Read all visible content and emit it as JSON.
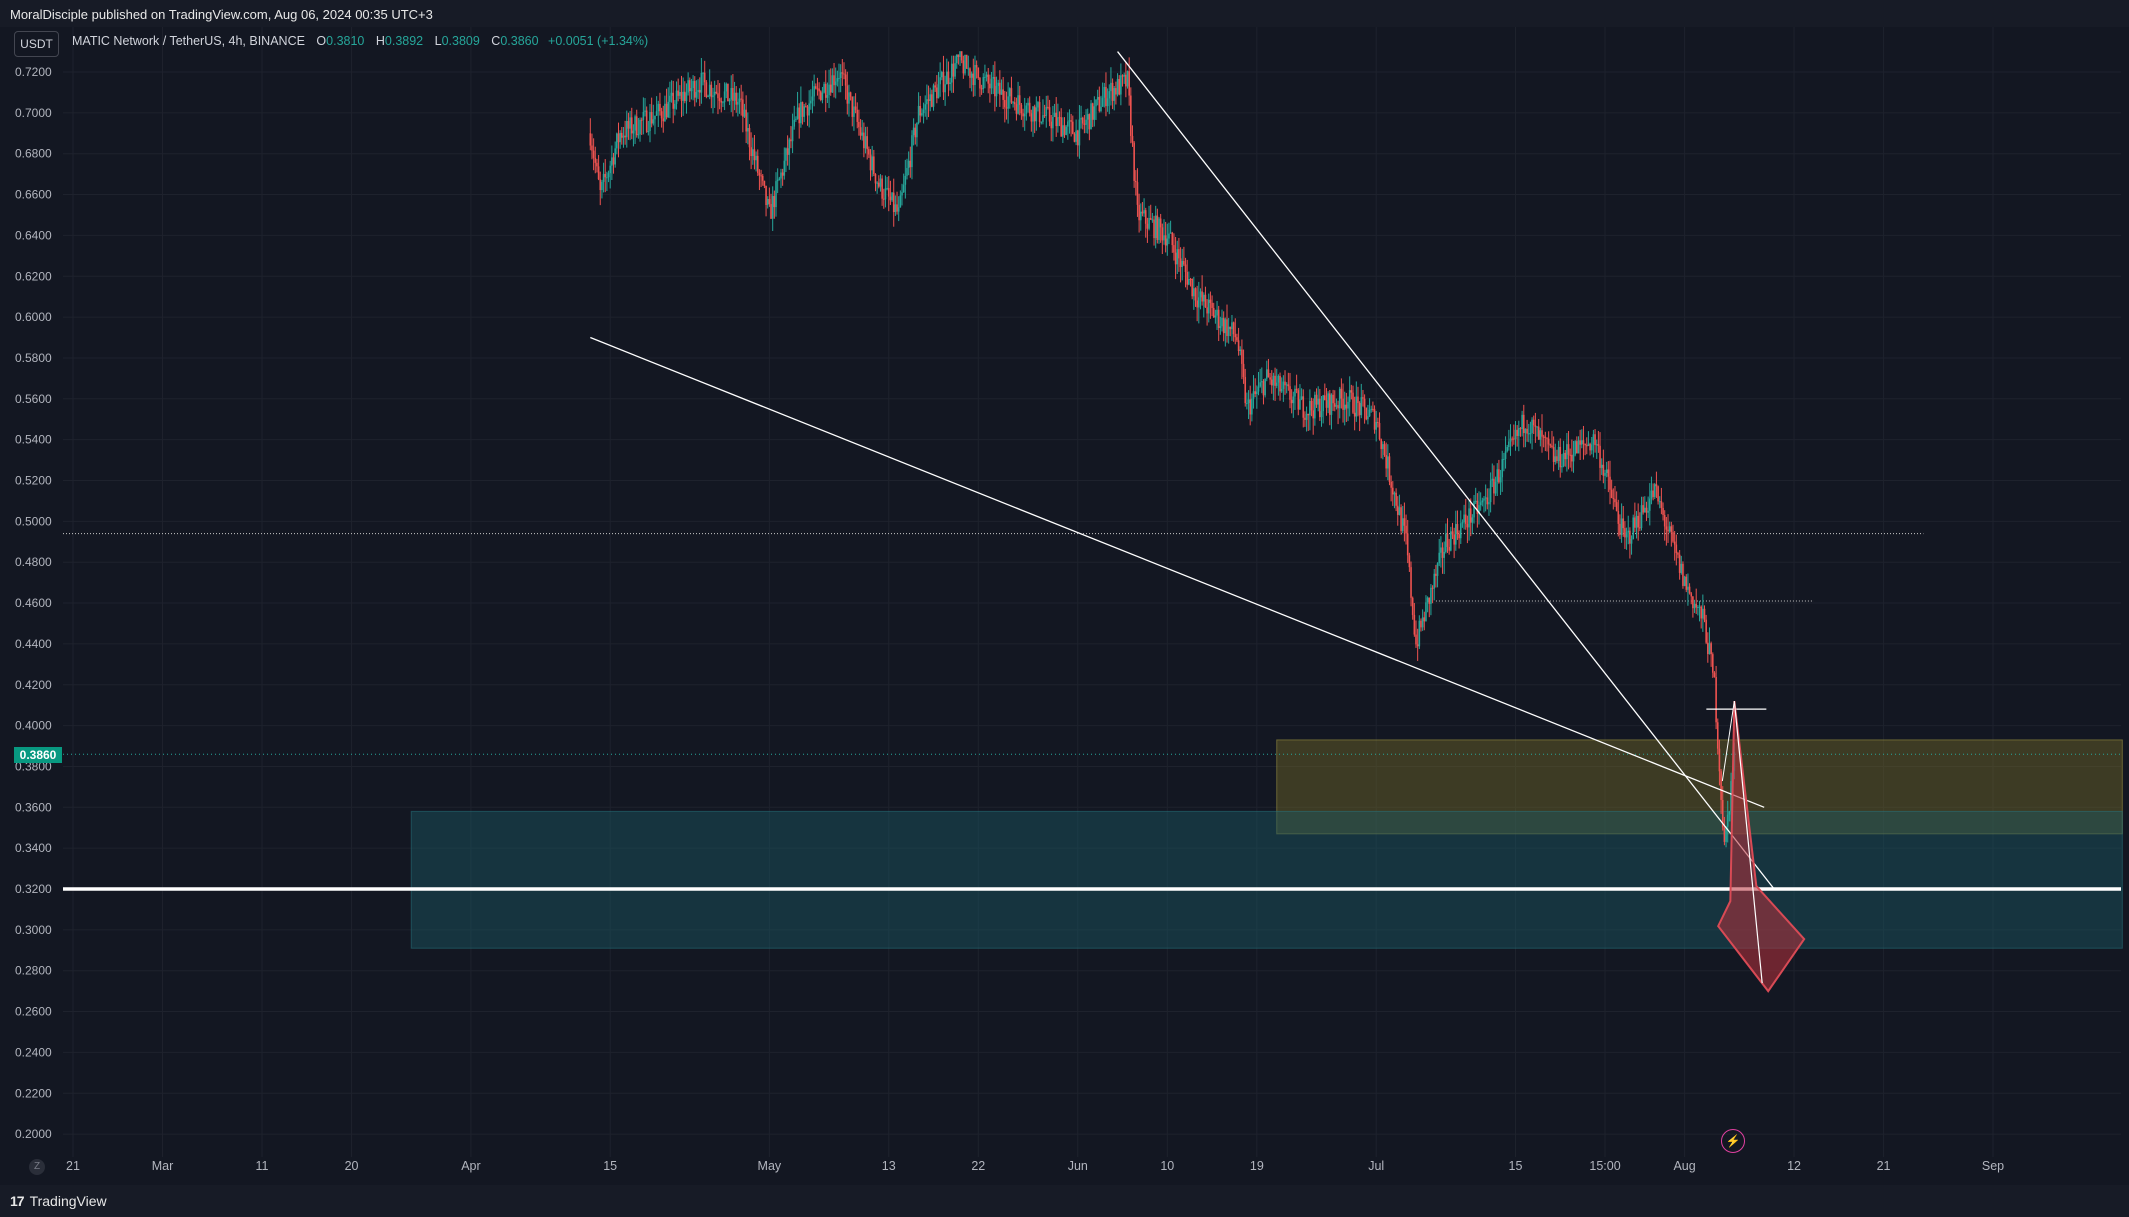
{
  "header": {
    "published": "MoralDisciple published on TradingView.com, Aug 06, 2024 00:35 UTC+3"
  },
  "legend": {
    "symbol_button": "USDT",
    "title": "MATIC Network / TetherUS, 4h, BINANCE",
    "o_label": "O",
    "o_value": "0.3810",
    "h_label": "H",
    "h_value": "0.3892",
    "l_label": "L",
    "l_value": "0.3809",
    "c_label": "C",
    "c_value": "0.3860",
    "change": "+0.0051 (+1.34%)"
  },
  "price_badge": "0.3860",
  "footer": {
    "brand": "TradingView",
    "logo_mark": "17",
    "z_button": "Z"
  },
  "colors": {
    "background": "#131722",
    "up": "#26a69a",
    "down": "#ef5350",
    "zone_olive": "#4a4a2a",
    "zone_teal": "#173d47",
    "arrow": "#b8323c",
    "line": "#ffffff"
  },
  "chart_data": {
    "type": "candlestick",
    "ylim": [
      0.19,
      0.73
    ],
    "y_ticks": [
      "0.7200",
      "0.7000",
      "0.6800",
      "0.6600",
      "0.6400",
      "0.6200",
      "0.6000",
      "0.5800",
      "0.5600",
      "0.5400",
      "0.5200",
      "0.5000",
      "0.4800",
      "0.4600",
      "0.4400",
      "0.4200",
      "0.4000",
      "0.3860",
      "0.3800",
      "0.3600",
      "0.3400",
      "0.3200",
      "0.3000",
      "0.2800",
      "0.2600",
      "0.2400",
      "0.2200",
      "0.2000"
    ],
    "x_ticks": [
      {
        "label": "21",
        "date": "2024-02-21"
      },
      {
        "label": "Mar",
        "date": "2024-03-01"
      },
      {
        "label": "11",
        "date": "2024-03-11"
      },
      {
        "label": "20",
        "date": "2024-03-20"
      },
      {
        "label": "Apr",
        "date": "2024-04-01"
      },
      {
        "label": "15",
        "date": "2024-04-15"
      },
      {
        "label": "May",
        "date": "2024-05-01"
      },
      {
        "label": "13",
        "date": "2024-05-13"
      },
      {
        "label": "22",
        "date": "2024-05-22"
      },
      {
        "label": "Jun",
        "date": "2024-06-01"
      },
      {
        "label": "10",
        "date": "2024-06-10"
      },
      {
        "label": "19",
        "date": "2024-06-19"
      },
      {
        "label": "Jul",
        "date": "2024-07-01"
      },
      {
        "label": "15",
        "date": "2024-07-15"
      },
      {
        "label": "15:00",
        "date": "2024-07-24"
      },
      {
        "label": "Aug",
        "date": "2024-08-01"
      },
      {
        "label": "12",
        "date": "2024-08-12"
      },
      {
        "label": "21",
        "date": "2024-08-21"
      },
      {
        "label": "Sep",
        "date": "2024-09-01"
      }
    ],
    "price_path": [
      {
        "date": "2024-04-13",
        "price": 0.69
      },
      {
        "date": "2024-04-14",
        "price": 0.66
      },
      {
        "date": "2024-04-16",
        "price": 0.69
      },
      {
        "date": "2024-04-20",
        "price": 0.7
      },
      {
        "date": "2024-04-24",
        "price": 0.715
      },
      {
        "date": "2024-04-28",
        "price": 0.705
      },
      {
        "date": "2024-05-01",
        "price": 0.65
      },
      {
        "date": "2024-05-04",
        "price": 0.7
      },
      {
        "date": "2024-05-08",
        "price": 0.72
      },
      {
        "date": "2024-05-12",
        "price": 0.665
      },
      {
        "date": "2024-05-14",
        "price": 0.65
      },
      {
        "date": "2024-05-16",
        "price": 0.7
      },
      {
        "date": "2024-05-20",
        "price": 0.725
      },
      {
        "date": "2024-05-24",
        "price": 0.71
      },
      {
        "date": "2024-05-28",
        "price": 0.7
      },
      {
        "date": "2024-06-01",
        "price": 0.69
      },
      {
        "date": "2024-06-04",
        "price": 0.71
      },
      {
        "date": "2024-06-06",
        "price": 0.715
      },
      {
        "date": "2024-06-07",
        "price": 0.65
      },
      {
        "date": "2024-06-10",
        "price": 0.64
      },
      {
        "date": "2024-06-13",
        "price": 0.61
      },
      {
        "date": "2024-06-17",
        "price": 0.59
      },
      {
        "date": "2024-06-18",
        "price": 0.555
      },
      {
        "date": "2024-06-20",
        "price": 0.57
      },
      {
        "date": "2024-06-24",
        "price": 0.555
      },
      {
        "date": "2024-06-28",
        "price": 0.56
      },
      {
        "date": "2024-07-01",
        "price": 0.55
      },
      {
        "date": "2024-07-04",
        "price": 0.49
      },
      {
        "date": "2024-07-05",
        "price": 0.44
      },
      {
        "date": "2024-07-08",
        "price": 0.49
      },
      {
        "date": "2024-07-12",
        "price": 0.51
      },
      {
        "date": "2024-07-16",
        "price": 0.55
      },
      {
        "date": "2024-07-19",
        "price": 0.53
      },
      {
        "date": "2024-07-23",
        "price": 0.54
      },
      {
        "date": "2024-07-26",
        "price": 0.49
      },
      {
        "date": "2024-07-29",
        "price": 0.515
      },
      {
        "date": "2024-08-01",
        "price": 0.47
      },
      {
        "date": "2024-08-03",
        "price": 0.45
      },
      {
        "date": "2024-08-04",
        "price": 0.42
      },
      {
        "date": "2024-08-05",
        "price": 0.34
      },
      {
        "date": "2024-08-06",
        "price": 0.386
      }
    ],
    "horizontal_levels": [
      {
        "price": 0.32,
        "style": "solid"
      },
      {
        "price": 0.494,
        "style": "dotted"
      },
      {
        "price": 0.461,
        "style": "dotted"
      },
      {
        "price": 0.386,
        "style": "dotted"
      }
    ],
    "zones": [
      {
        "from": "2024-06-21",
        "to": "2024-09-14",
        "low": 0.347,
        "high": 0.393,
        "color": "olive"
      },
      {
        "from": "2024-03-26",
        "to": "2024-09-14",
        "low": 0.291,
        "high": 0.358,
        "color": "teal"
      }
    ],
    "trendlines": [
      {
        "from": {
          "date": "2024-04-13",
          "price": 0.59
        },
        "to": {
          "date": "2024-08-09",
          "price": 0.36
        }
      },
      {
        "from": {
          "date": "2024-06-05",
          "price": 0.73
        },
        "to": {
          "date": "2024-08-10",
          "price": 0.32
        }
      }
    ],
    "arrow_projection": {
      "from": {
        "date": "2024-08-06",
        "price": 0.412
      },
      "to": {
        "date": "2024-08-09",
        "price": 0.27
      }
    }
  }
}
